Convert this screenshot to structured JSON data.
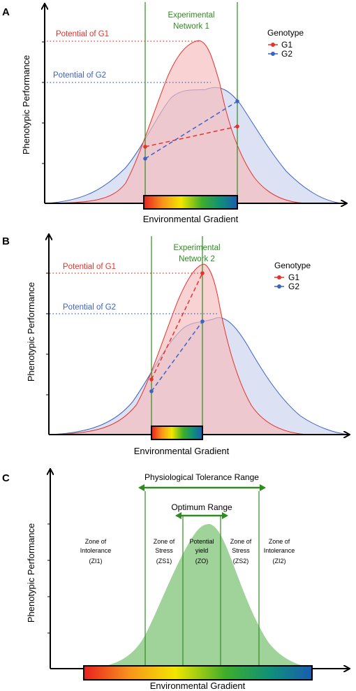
{
  "colors": {
    "g1": "#e8312a",
    "g2": "#3a63c7",
    "network": "#2e8b1e",
    "fill_g1": "#f6bcbc",
    "fill_g2": "#c9d1ee",
    "fill_zone": "#9fd39a"
  },
  "panel_a": {
    "letter": "A",
    "ylabel": "Phenotypic Performance",
    "xlabel": "Environmental Gradient",
    "network_line1": "Experimental",
    "network_line2": "Network 1",
    "potential_g1": "Potential of G1",
    "potential_g2": "Potential of G2",
    "legend_title": "Genotype",
    "legend_g1": "G1",
    "legend_g2": "G2"
  },
  "panel_b": {
    "letter": "B",
    "ylabel": "Phenotypic Performance",
    "xlabel": "Environmental Gradient",
    "network_line1": "Experimental",
    "network_line2": "Network 2",
    "potential_g1": "Potential of G1",
    "potential_g2": "Potential of G2",
    "legend_title": "Genotype",
    "legend_g1": "G1",
    "legend_g2": "G2"
  },
  "panel_c": {
    "letter": "C",
    "ylabel": "Phenotypic Performance",
    "xlabel": "Environmental Gradient",
    "tolerance_range": "Physiological Tolerance Range",
    "optimum_range": "Optimum Range",
    "zones": [
      {
        "line1": "Zone of",
        "line2": "Intolerance",
        "line3": "(ZI1)"
      },
      {
        "line1": "Zone of",
        "line2": "Stress",
        "line3": "(ZS1)"
      },
      {
        "line1": "Potential",
        "line2": "yield",
        "line3": "(ZO)"
      },
      {
        "line1": "Zone of",
        "line2": "Stress",
        "line3": "(ZS2)"
      },
      {
        "line1": "Zone of",
        "line2": "Intolerance",
        "line3": "(ZI2)"
      }
    ]
  }
}
